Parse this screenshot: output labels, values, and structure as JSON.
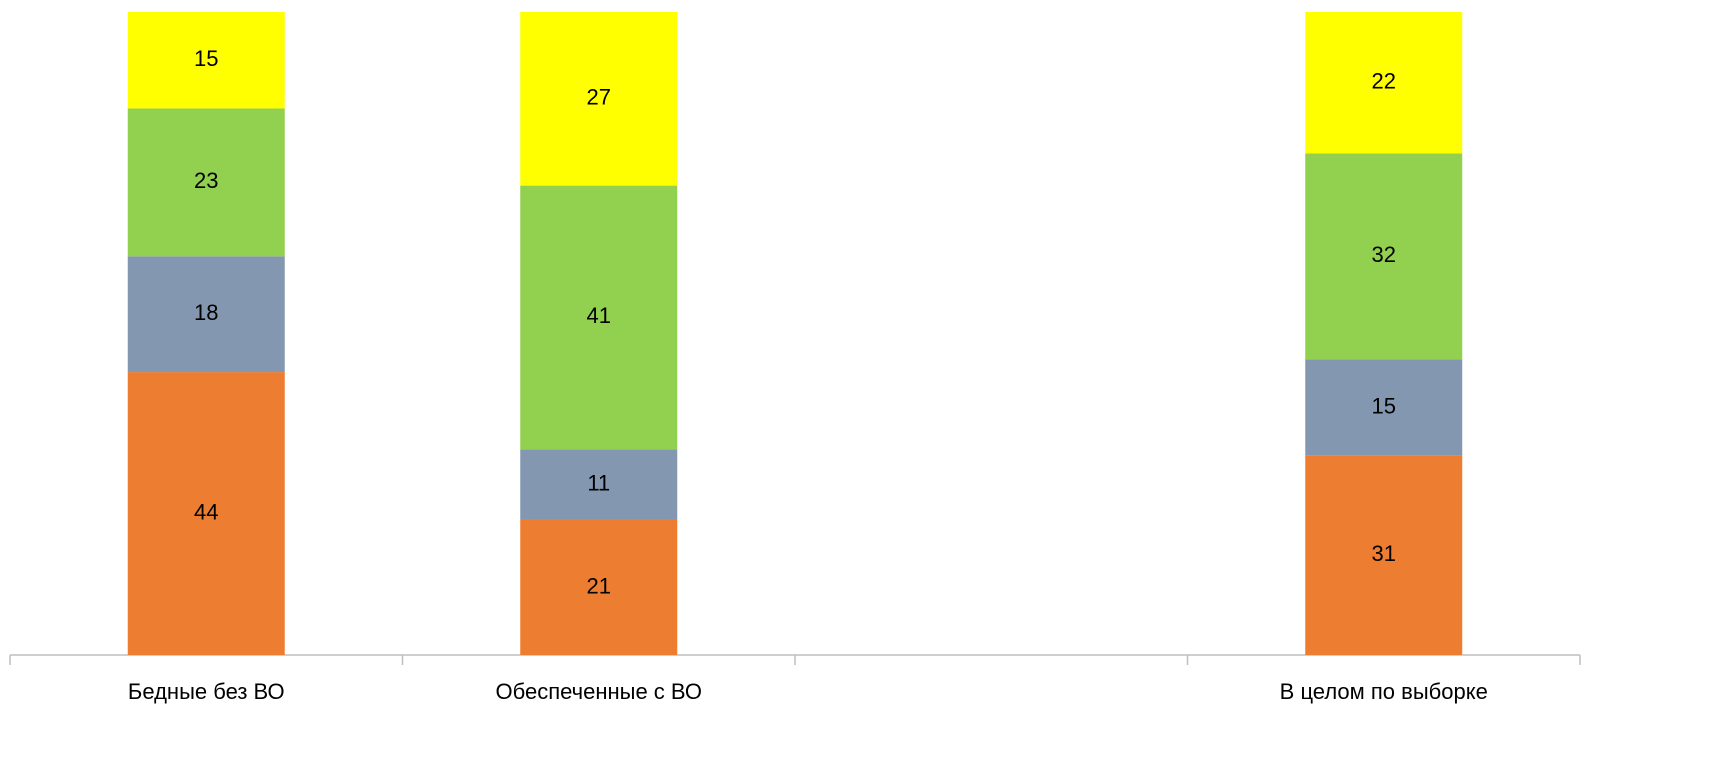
{
  "chart_data": {
    "type": "stacked_bar",
    "categories": [
      "Бедные без ВО",
      "Обеспеченные с ВО",
      null,
      "В целом по выборке"
    ],
    "series": [
      {
        "color": "#ed7d31",
        "values": [
          44,
          21,
          null,
          31
        ]
      },
      {
        "color": "#8497b0",
        "values": [
          18,
          11,
          null,
          15
        ]
      },
      {
        "color": "#92d050",
        "values": [
          23,
          41,
          null,
          32
        ]
      },
      {
        "color": "#ffff00",
        "values": [
          15,
          27,
          null,
          22
        ]
      }
    ],
    "ylim": [
      0,
      100
    ]
  }
}
